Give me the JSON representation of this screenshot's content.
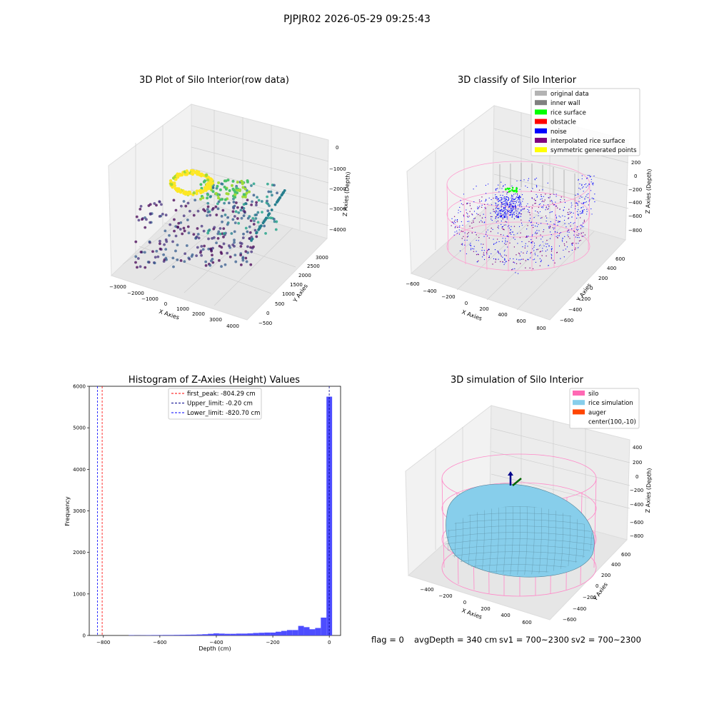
{
  "figure": {
    "suptitle": "PJPJR02 2026-05-29 09:25:43",
    "status": {
      "flag": "flag = 0",
      "avg_depth": "avgDepth = 340 cm",
      "sv1": "sv1 = 700~2300",
      "sv2": "sv2 = 700~2300"
    }
  },
  "chart_data": [
    {
      "type": "scatter",
      "projection": "3d",
      "title": "3D Plot of Silo Interior(row data)",
      "xlabel": "X Axies",
      "ylabel": "Y Axies",
      "zlabel": "Z Axies (Depth)",
      "x_ticks": [
        "−3000",
        "−2000",
        "−1000",
        "0",
        "1000",
        "2000",
        "3000",
        "4000"
      ],
      "y_ticks": [
        "−500",
        "0",
        "500",
        "1000",
        "1500",
        "2000",
        "2500",
        "3000"
      ],
      "z_ticks": [
        "−4000",
        "−3000",
        "−2000",
        "−1000",
        "0"
      ],
      "colormap": "viridis",
      "note": "point cloud colored by depth (dark purple = deep, yellow = shallow)"
    },
    {
      "type": "scatter",
      "projection": "3d",
      "title": "3D classify of Silo Interior",
      "xlabel": "X Axies",
      "ylabel": "Y Axies",
      "zlabel": "Z Axies (Depth)",
      "x_ticks": [
        "−600",
        "−400",
        "−200",
        "0",
        "200",
        "400",
        "600",
        "800"
      ],
      "y_ticks": [
        "−600",
        "−400",
        "−200",
        "0",
        "200",
        "400",
        "600"
      ],
      "z_ticks": [
        "−800",
        "−600",
        "−400",
        "−200",
        "0",
        "200"
      ],
      "legend_position": "top-right",
      "legend": [
        {
          "name": "original data",
          "color": "#b3b3b3"
        },
        {
          "name": "inner wall",
          "color": "#808080"
        },
        {
          "name": "rice surface",
          "color": "#00ff00"
        },
        {
          "name": "obstacle",
          "color": "#ff0000"
        },
        {
          "name": "noise",
          "color": "#0000ff"
        },
        {
          "name": "interpolated rice surface",
          "color": "#800080"
        },
        {
          "name": "symmetric generated points",
          "color": "#ffff00"
        }
      ]
    },
    {
      "type": "bar",
      "subtype": "histogram",
      "title": "Histogram of Z-Axies (Height) Values",
      "xlabel": "Depth (cm)",
      "ylabel": "Frequency",
      "xlim": [
        -850,
        40
      ],
      "ylim": [
        0,
        6000
      ],
      "x_ticks": [
        -800,
        -600,
        -400,
        -200,
        0
      ],
      "x_tick_labels": [
        "−800",
        "−600",
        "−400",
        "−200",
        "0"
      ],
      "y_ticks": [
        0,
        1000,
        2000,
        3000,
        4000,
        5000,
        6000
      ],
      "y_tick_labels": [
        "0",
        "1000",
        "2000",
        "3000",
        "4000",
        "5000",
        "6000"
      ],
      "bar_color": "#4d4dff",
      "bin_width": 20,
      "bins": [
        {
          "x": -700,
          "value": 8
        },
        {
          "x": -680,
          "value": 5
        },
        {
          "x": -660,
          "value": 6
        },
        {
          "x": -640,
          "value": 8
        },
        {
          "x": -620,
          "value": 10
        },
        {
          "x": -600,
          "value": 10
        },
        {
          "x": -580,
          "value": 12
        },
        {
          "x": -560,
          "value": 12
        },
        {
          "x": -540,
          "value": 14
        },
        {
          "x": -520,
          "value": 16
        },
        {
          "x": -500,
          "value": 18
        },
        {
          "x": -480,
          "value": 20
        },
        {
          "x": -460,
          "value": 24
        },
        {
          "x": -440,
          "value": 30
        },
        {
          "x": -420,
          "value": 40
        },
        {
          "x": -400,
          "value": 50
        },
        {
          "x": -380,
          "value": 45
        },
        {
          "x": -360,
          "value": 40
        },
        {
          "x": -340,
          "value": 40
        },
        {
          "x": -320,
          "value": 45
        },
        {
          "x": -300,
          "value": 45
        },
        {
          "x": -280,
          "value": 50
        },
        {
          "x": -260,
          "value": 60
        },
        {
          "x": -240,
          "value": 65
        },
        {
          "x": -220,
          "value": 70
        },
        {
          "x": -200,
          "value": 70
        },
        {
          "x": -180,
          "value": 90
        },
        {
          "x": -160,
          "value": 110
        },
        {
          "x": -140,
          "value": 130
        },
        {
          "x": -120,
          "value": 130
        },
        {
          "x": -100,
          "value": 230
        },
        {
          "x": -80,
          "value": 200
        },
        {
          "x": -60,
          "value": 150
        },
        {
          "x": -40,
          "value": 180
        },
        {
          "x": -20,
          "value": 430
        },
        {
          "x": 0,
          "value": 5750
        }
      ],
      "lines": [
        {
          "name": "first_peak: -804.29 cm",
          "x": -804.29,
          "color": "#ff0000"
        },
        {
          "name": "Upper_limit: -0.20 cm",
          "x": -0.2,
          "color": "#00008b"
        },
        {
          "name": "Lower_limit: -820.70 cm",
          "x": -820.7,
          "color": "#0000ff"
        }
      ],
      "legend_position": "top-center"
    },
    {
      "type": "area",
      "projection": "3d",
      "title": "3D simulation of Silo Interior",
      "xlabel": "X Axies",
      "ylabel": "Y Axies",
      "zlabel": "Z Axies (Depth)",
      "x_ticks": [
        "−400",
        "−200",
        "0",
        "200",
        "400",
        "600"
      ],
      "y_ticks": [
        "−600",
        "−400",
        "−200",
        "0",
        "200",
        "400",
        "600"
      ],
      "z_ticks": [
        "−800",
        "−600",
        "−400",
        "−200",
        "0",
        "200",
        "400"
      ],
      "legend_position": "top-right",
      "legend": [
        {
          "name": "silo",
          "color": "#ff69b4"
        },
        {
          "name": "rice simulation",
          "color": "#87ceeb"
        },
        {
          "name": "auger",
          "color": "#ff4500"
        },
        {
          "name": "center(100,-10)",
          "color": ""
        }
      ]
    }
  ]
}
